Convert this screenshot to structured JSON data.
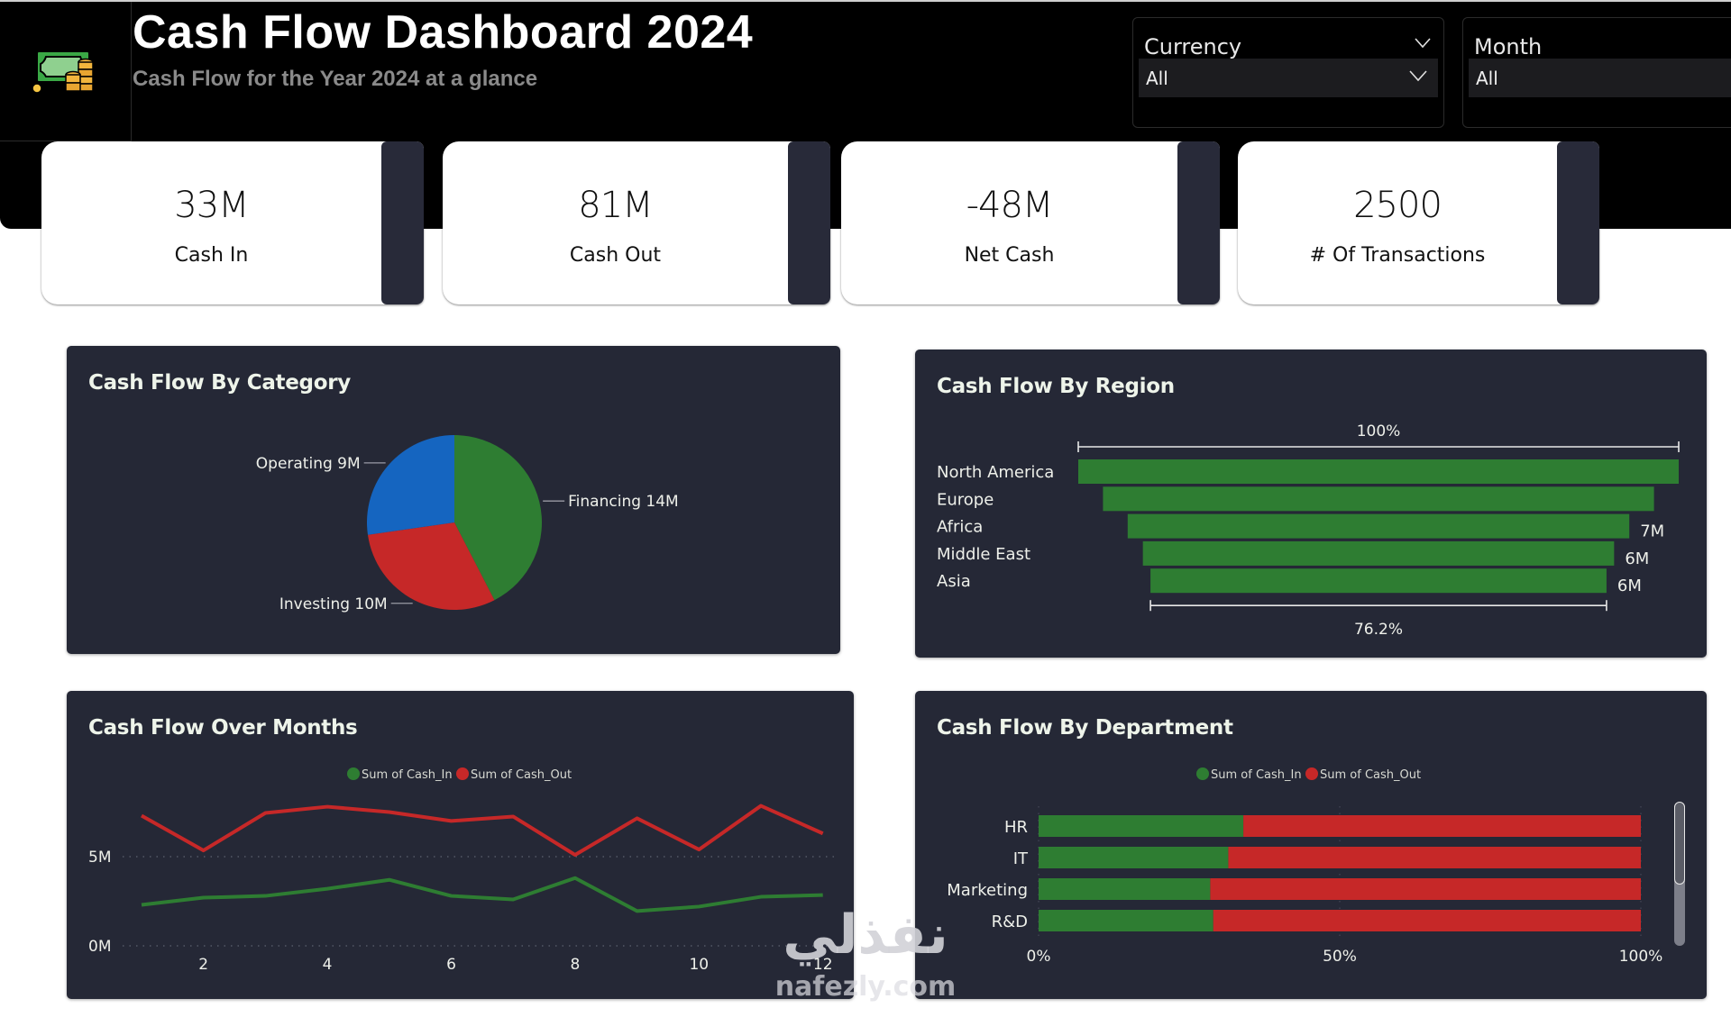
{
  "header": {
    "title": "Cash Flow Dashboard 2024",
    "subtitle": "Cash Flow for the Year 2024 at a glance",
    "logo_icon": "money-bill-coins-icon"
  },
  "slicers": [
    {
      "label": "Currency",
      "value": "All"
    },
    {
      "label": "Month",
      "value": "All"
    }
  ],
  "kpis": [
    {
      "value": "33M",
      "label": "Cash In"
    },
    {
      "value": "81M",
      "label": "Cash Out"
    },
    {
      "value": "-48M",
      "label": "Net Cash"
    },
    {
      "value": "2500",
      "label": "# Of Transactions"
    }
  ],
  "colors": {
    "green": "#2e7d32",
    "red": "#c62828",
    "blue": "#1565c0",
    "panel": "#252836"
  },
  "watermark": {
    "arabic": "نفذلي",
    "latin": "nafezly.com"
  },
  "chart_data": [
    {
      "id": "category",
      "type": "pie",
      "title": "Cash Flow By Category",
      "categories": [
        "Financing",
        "Investing",
        "Operating"
      ],
      "values": [
        14,
        10,
        9
      ],
      "unit": "M",
      "data_labels": [
        "Financing 14M",
        "Investing 10M",
        "Operating 9M"
      ],
      "colors": [
        "#2e7d32",
        "#c62828",
        "#1565c0"
      ]
    },
    {
      "id": "region",
      "type": "bar",
      "subtype": "funnel",
      "title": "Cash Flow By Region",
      "categories": [
        "North America",
        "Europe",
        "Africa",
        "Middle East",
        "Asia"
      ],
      "values": [
        7.9,
        7.25,
        6.6,
        6.2,
        6.0
      ],
      "unit": "M",
      "data_labels": [
        "",
        "",
        "7M",
        "6M",
        "6M"
      ],
      "top_label": "100%",
      "bottom_label": "76.2%",
      "color": "#2e7d32"
    },
    {
      "id": "months",
      "type": "line",
      "title": "Cash Flow Over Months",
      "x": [
        1,
        2,
        3,
        4,
        5,
        6,
        7,
        8,
        9,
        10,
        11,
        12
      ],
      "x_ticks": [
        "2",
        "4",
        "6",
        "8",
        "10",
        "12"
      ],
      "x_tick_values": [
        2,
        4,
        6,
        8,
        10,
        12
      ],
      "y_ticks": [
        "0M",
        "5M"
      ],
      "y_tick_values": [
        0,
        5
      ],
      "ylim": [
        0,
        8.5
      ],
      "legend": "top-center",
      "grid": true,
      "series": [
        {
          "name": "Sum of Cash_In",
          "color": "#2e7d32",
          "values": [
            2.3,
            2.7,
            2.8,
            3.2,
            3.7,
            2.8,
            2.6,
            3.8,
            1.95,
            2.2,
            2.75,
            2.85
          ]
        },
        {
          "name": "Sum of Cash_Out",
          "color": "#c62828",
          "values": [
            7.3,
            5.35,
            7.45,
            7.8,
            7.5,
            7.0,
            7.25,
            5.1,
            7.15,
            5.4,
            7.85,
            6.3
          ]
        }
      ]
    },
    {
      "id": "department",
      "type": "bar",
      "subtype": "100%-stacked-horizontal",
      "title": "Cash Flow By Department",
      "categories": [
        "HR",
        "IT",
        "Marketing",
        "R&D"
      ],
      "x_ticks": [
        "0%",
        "50%",
        "100%"
      ],
      "x_tick_values": [
        0,
        50,
        100
      ],
      "legend": "top-center",
      "series": [
        {
          "name": "Sum of Cash_In",
          "color": "#2e7d32",
          "values": [
            34,
            31.5,
            28.5,
            29
          ]
        },
        {
          "name": "Sum of Cash_Out",
          "color": "#c62828",
          "values": [
            66,
            68.5,
            71.5,
            71
          ]
        }
      ],
      "scroll_position": 0
    }
  ]
}
